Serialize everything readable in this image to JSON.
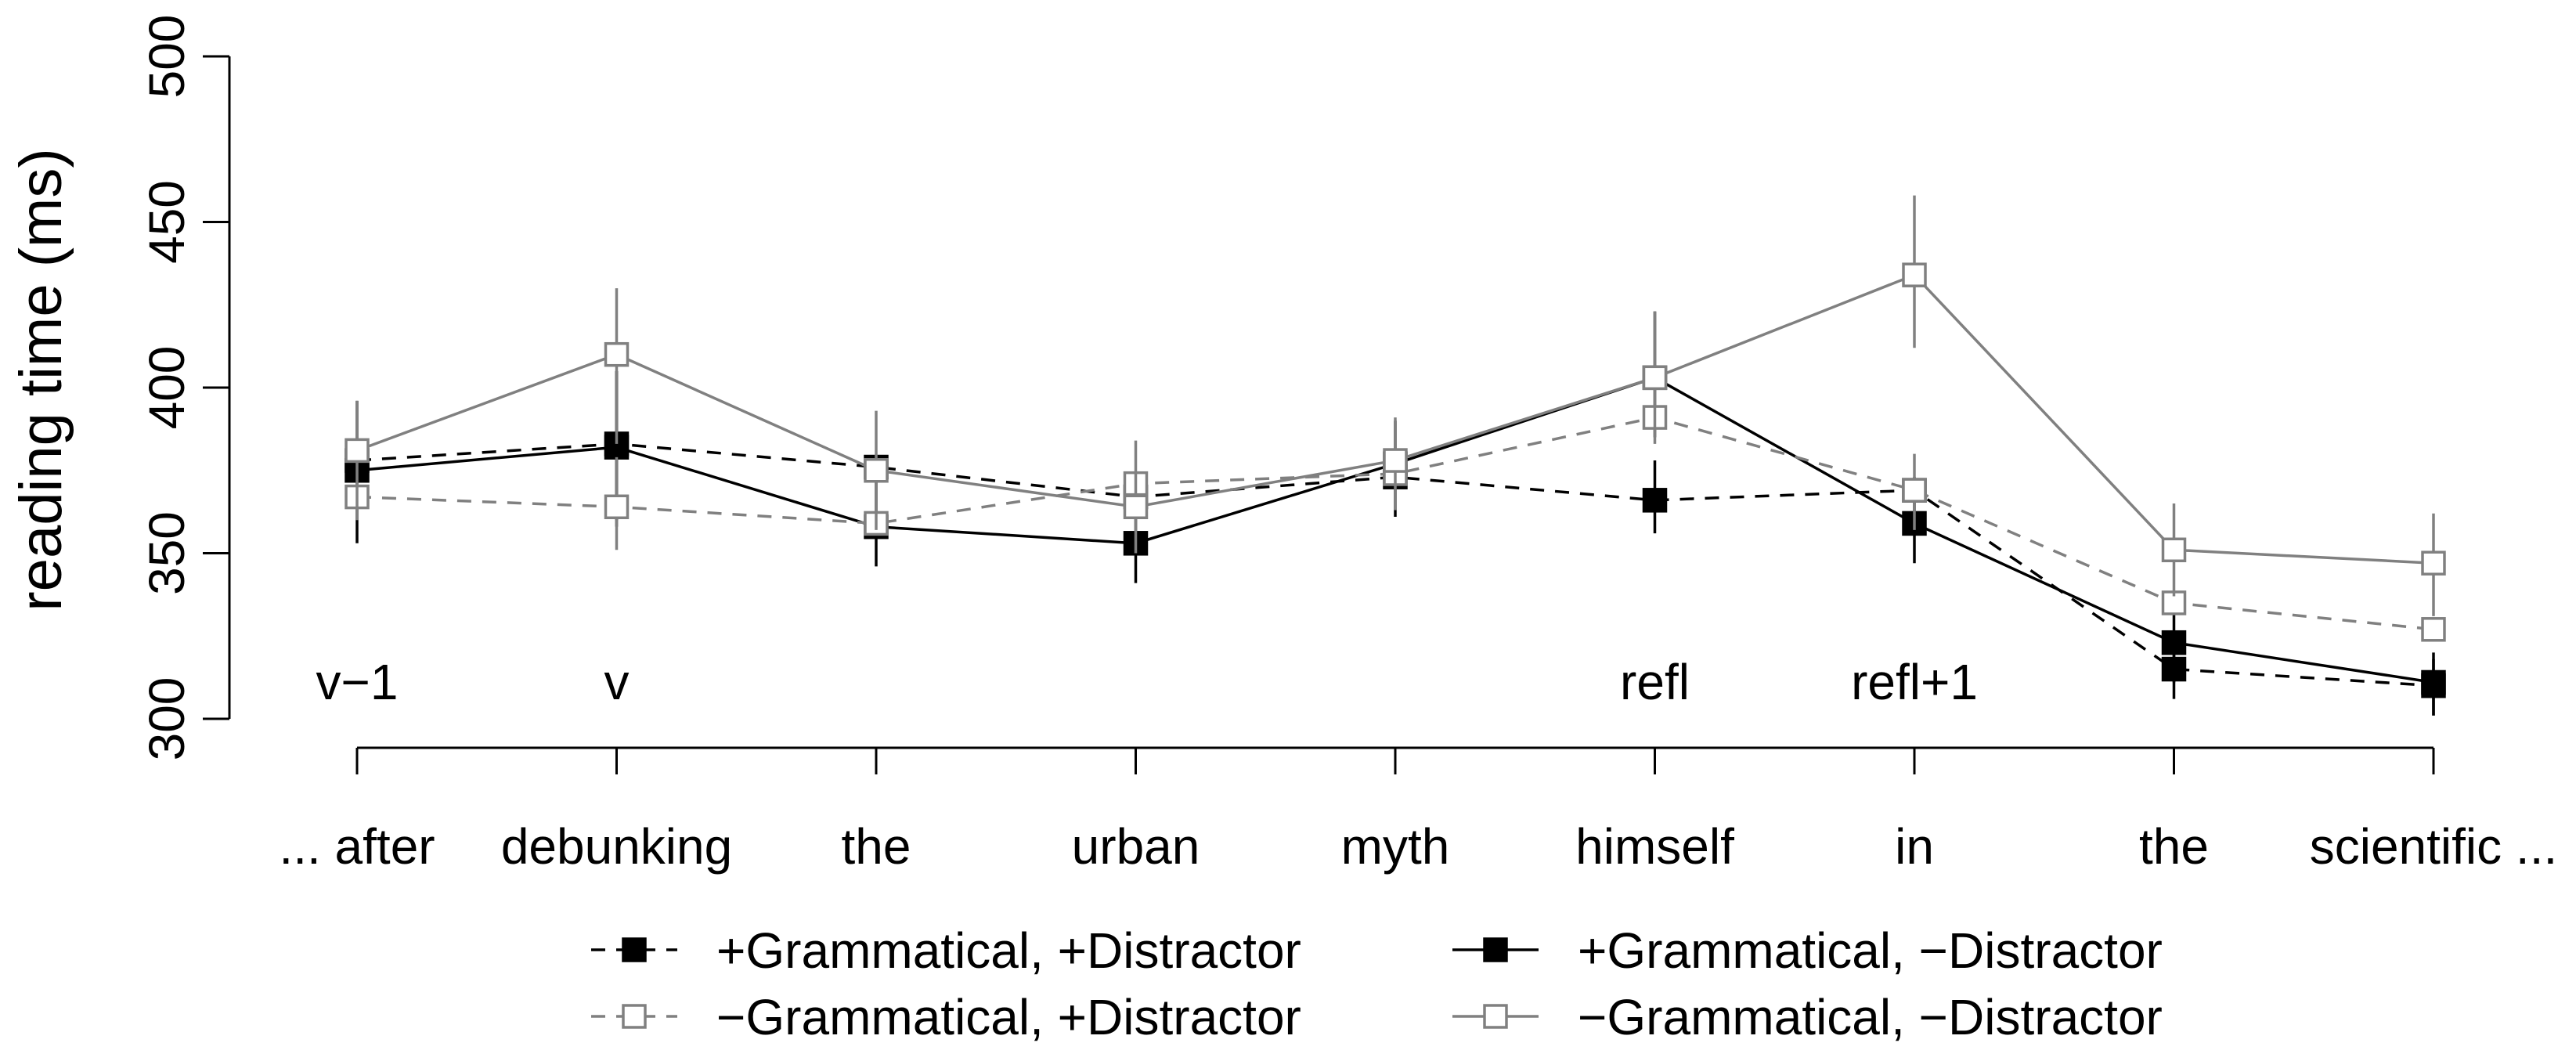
{
  "chart_data": {
    "type": "line",
    "ylabel": "reading time (ms)",
    "ylim": [
      300,
      500
    ],
    "yticks": [
      300,
      350,
      400,
      450,
      500
    ],
    "categories": [
      "... after",
      "debunking",
      "the",
      "urban",
      "myth",
      "himself",
      "in",
      "the",
      "scientific ..."
    ],
    "region_labels": [
      {
        "index": 0,
        "text": "v−1"
      },
      {
        "index": 1,
        "text": "v"
      },
      {
        "index": 5,
        "text": "refl"
      },
      {
        "index": 6,
        "text": "refl+1"
      }
    ],
    "grid": false,
    "legend_placement": "bottom",
    "series": [
      {
        "name": "+Grammatical, +Distractor",
        "color": "#000000",
        "dash": true,
        "filled": true,
        "values": [
          378,
          383,
          376,
          367,
          373,
          366,
          369,
          315,
          310
        ],
        "err_low": [
          null,
          360,
          null,
          null,
          null,
          356,
          null,
          306,
          301
        ],
        "err_high": [
          null,
          405,
          null,
          null,
          null,
          378,
          null,
          323,
          318
        ]
      },
      {
        "name": "+Grammatical, −Distractor",
        "color": "#000000",
        "dash": false,
        "filled": true,
        "values": [
          375,
          382,
          358,
          353,
          377,
          403,
          359,
          323,
          311
        ],
        "err_low": [
          353,
          358,
          346,
          341,
          361,
          385,
          347,
          311,
          301
        ],
        "err_high": [
          396,
          405,
          374,
          367,
          390,
          423,
          373,
          335,
          320
        ]
      },
      {
        "name": "−Grammatical, +Distractor",
        "color": "#808080",
        "dash": true,
        "filled": false,
        "values": [
          367,
          364,
          359,
          371,
          374,
          391,
          369,
          335,
          327
        ],
        "err_low": [
          null,
          351,
          null,
          null,
          null,
          null,
          357,
          null,
          null
        ],
        "err_high": [
          null,
          379,
          null,
          null,
          null,
          null,
          380,
          null,
          null
        ]
      },
      {
        "name": "−Grammatical, −Distractor",
        "color": "#808080",
        "dash": false,
        "filled": false,
        "values": [
          381,
          410,
          375,
          364,
          378,
          403,
          434,
          351,
          347
        ],
        "err_low": [
          360,
          383,
          357,
          350,
          363,
          383,
          412,
          337,
          331
        ],
        "err_high": [
          396,
          430,
          393,
          384,
          391,
          423,
          458,
          365,
          362
        ]
      }
    ]
  }
}
